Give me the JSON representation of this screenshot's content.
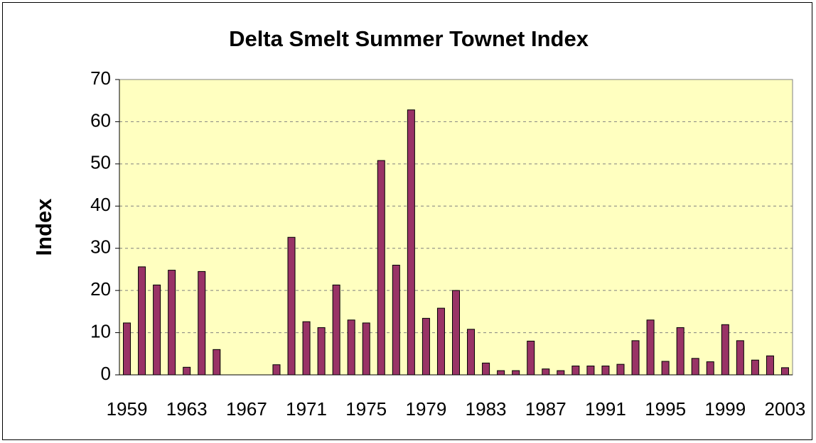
{
  "chart_data": {
    "type": "bar",
    "title": "Delta Smelt Summer Townet Index",
    "y_label": "Index",
    "categories": [
      "1959",
      null,
      null,
      null,
      "1963",
      null,
      null,
      null,
      "1967",
      null,
      null,
      null,
      "1971",
      null,
      null,
      null,
      "1975",
      null,
      null,
      null,
      "1979",
      null,
      null,
      null,
      "1983",
      null,
      null,
      null,
      "1987",
      null,
      null,
      null,
      "1991",
      null,
      null,
      null,
      "1995",
      null,
      null,
      null,
      "1999",
      null,
      null,
      null,
      "2003"
    ],
    "values": [
      12.3,
      25.6,
      21.3,
      24.8,
      1.8,
      24.5,
      6.0,
      0,
      0,
      0,
      2.4,
      32.6,
      12.6,
      11.2,
      21.3,
      13,
      12.3,
      50.8,
      26,
      62.8,
      13.4,
      15.8,
      20,
      10.8,
      2.8,
      1.0,
      1.0,
      8,
      1.4,
      1.0,
      2.1,
      2.1,
      2.1,
      2.5,
      8.1,
      13,
      3.2,
      11.2,
      3.9,
      3.1,
      11.9,
      8.1,
      3.5,
      4.5,
      1.7
    ],
    "color": "#993366",
    "ylim": [
      0,
      70
    ],
    "yticks": [
      0,
      10,
      20,
      30,
      40,
      50,
      60,
      70
    ],
    "grid": true
  }
}
